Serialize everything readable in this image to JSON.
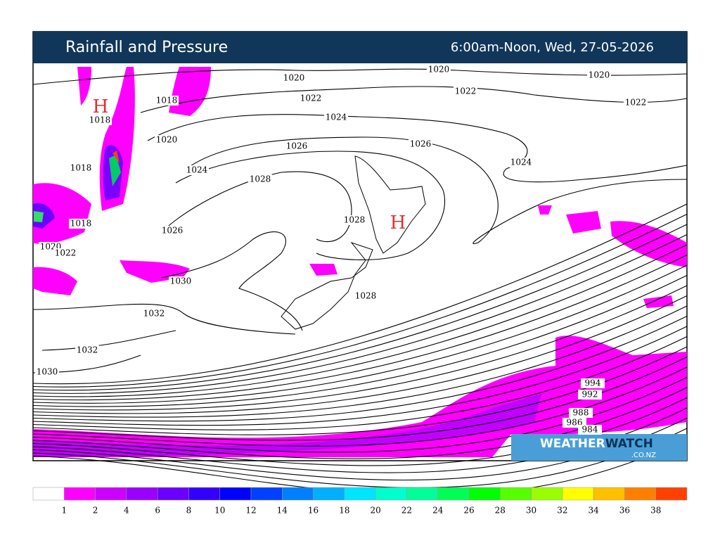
{
  "header": {
    "title": "Rainfall and Pressure",
    "time": "6:00am-Noon, Wed, 27-05-2026"
  },
  "map": {
    "highs": [
      "H",
      "H"
    ],
    "isobar_labels": [
      1020,
      1020,
      1020,
      1022,
      1022,
      1022,
      1018,
      1018,
      1020,
      1024,
      1026,
      1026,
      1024,
      1024,
      1018,
      1028,
      1028,
      1018,
      1026,
      1020,
      1022,
      1030,
      1028,
      1032,
      1032,
      1030,
      994,
      992,
      988,
      986,
      984
    ]
  },
  "logo": {
    "main": "WEATHER",
    "accent": "WATCH",
    "sub": ".CO.NZ"
  },
  "legend": {
    "colors": [
      "#ffffff",
      "#ff00ff",
      "#cc00ff",
      "#9900ff",
      "#6a00ff",
      "#3300ff",
      "#0000ff",
      "#0040ff",
      "#0080ff",
      "#00b0ff",
      "#00e5ff",
      "#00ffcc",
      "#00ff99",
      "#00ff55",
      "#00ff00",
      "#55ff00",
      "#99ff00",
      "#ffff00",
      "#ffc000",
      "#ff8000",
      "#ff4000"
    ],
    "ticks": [
      1,
      2,
      4,
      6,
      8,
      10,
      12,
      14,
      16,
      18,
      20,
      22,
      24,
      26,
      28,
      30,
      32,
      34,
      36,
      38
    ]
  }
}
